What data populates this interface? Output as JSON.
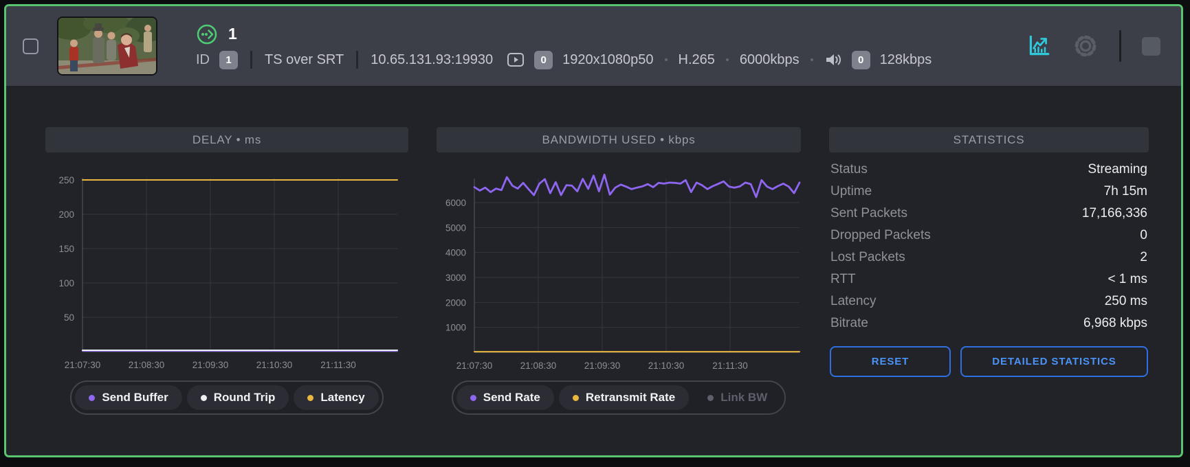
{
  "header": {
    "stream_number": "1",
    "id_label": "ID",
    "id_value": "1",
    "protocol": "TS over SRT",
    "address": "10.65.131.93:19930",
    "video_track_count": "0",
    "resolution": "1920x1080p50",
    "codec": "H.265",
    "video_bitrate": "6000kbps",
    "audio_track_count": "0",
    "audio_bitrate": "128kbps",
    "icons": {
      "stream_status": "dotted-circle-arrow-green",
      "video": "play-rectangle",
      "audio": "speaker",
      "charts_toggle": "line-chart-arrow-cyan",
      "settings": "gear",
      "stop": "gray-square"
    }
  },
  "colors": {
    "selection_border": "#5bc46f",
    "accent_purple": "#9168f0",
    "accent_yellow": "#e9b740",
    "accent_white": "#eceff1",
    "accent_cyan": "#2ec9dc",
    "accent_blue": "#4b93f7",
    "disabled_gray": "#6a6d76"
  },
  "panels": {
    "delay_title": "DELAY • ms",
    "bandwidth_title": "BANDWIDTH USED • kbps",
    "statistics_title": "STATISTICS"
  },
  "statistics": {
    "rows": [
      {
        "label": "Status",
        "value": "Streaming"
      },
      {
        "label": "Uptime",
        "value": "7h 15m"
      },
      {
        "label": "Sent Packets",
        "value": "17,166,336"
      },
      {
        "label": "Dropped Packets",
        "value": "0"
      },
      {
        "label": "Lost Packets",
        "value": "2"
      },
      {
        "label": "RTT",
        "value": "< 1 ms"
      },
      {
        "label": "Latency",
        "value": "250 ms"
      },
      {
        "label": "Bitrate",
        "value": "6,968 kbps"
      }
    ],
    "buttons": {
      "reset": "RESET",
      "detailed": "DETAILED STATISTICS"
    }
  },
  "chart_data": [
    {
      "id": "delay",
      "type": "line",
      "title": "DELAY • ms",
      "ylabel": "ms",
      "ylim": [
        0,
        253
      ],
      "yticks": [
        50,
        100,
        150,
        200,
        250
      ],
      "xticks": [
        "21:07:30",
        "21:08:30",
        "21:09:30",
        "21:10:30",
        "21:11:30"
      ],
      "grid": true,
      "legend_position": "bottom",
      "series": [
        {
          "name": "Send Buffer",
          "color": "#9168f0",
          "enabled": true,
          "values": [
            1,
            1
          ]
        },
        {
          "name": "Round Trip",
          "color": "#eceff1",
          "enabled": true,
          "values": [
            2,
            2
          ]
        },
        {
          "name": "Latency",
          "color": "#e9b740",
          "enabled": true,
          "values": [
            250,
            250
          ]
        }
      ]
    },
    {
      "id": "bandwidth",
      "type": "line",
      "title": "BANDWIDTH USED • kbps",
      "ylabel": "kbps",
      "ylim": [
        0,
        6963
      ],
      "yticks": [
        1000,
        2000,
        3000,
        4000,
        5000,
        6000
      ],
      "xticks": [
        "21:07:30",
        "21:08:30",
        "21:09:30",
        "21:10:30",
        "21:11:30"
      ],
      "grid": true,
      "legend_position": "bottom",
      "series": [
        {
          "name": "Send Rate",
          "color": "#8f66f2",
          "enabled": true,
          "values": [
            6620,
            6480,
            6600,
            6420,
            6560,
            6500,
            7020,
            6680,
            6560,
            6790,
            6540,
            6300,
            6760,
            6940,
            6380,
            6820,
            6300,
            6700,
            6680,
            6450,
            6950,
            6550,
            7080,
            6450,
            7120,
            6320,
            6600,
            6720,
            6640,
            6540,
            6600,
            6650,
            6740,
            6620,
            6790,
            6760,
            6800,
            6790,
            6760,
            6900,
            6420,
            6800,
            6700,
            6540,
            6660,
            6750,
            6850,
            6640,
            6600,
            6650,
            6800,
            6740,
            6220,
            6900,
            6640,
            6540,
            6660,
            6760,
            6640,
            6380,
            6800
          ]
        },
        {
          "name": "Retransmit Rate",
          "color": "#e9b740",
          "enabled": true,
          "values": [
            25,
            25
          ]
        },
        {
          "name": "Link BW",
          "color": "#6a6d76",
          "enabled": false,
          "values": []
        }
      ]
    }
  ]
}
